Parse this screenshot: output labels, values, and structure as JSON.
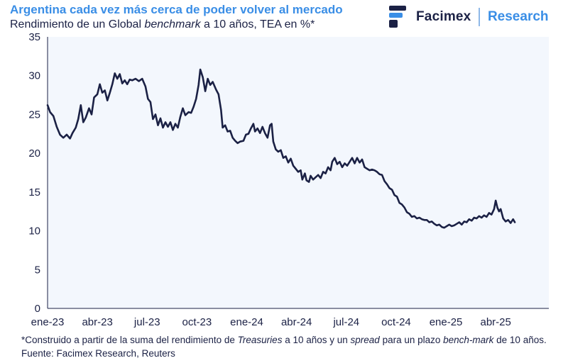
{
  "header": {
    "title": "Argentina cada vez más cerca de poder volver al mercado",
    "subtitle_pre": "Rendimiento de un Global ",
    "subtitle_em": "benchmark",
    "subtitle_post": " a 10 años, TEA en %*"
  },
  "brand": {
    "name": "Facimex",
    "unit": "Research",
    "colors": {
      "navy": "#1b2145",
      "blue": "#3a8ee6"
    }
  },
  "footnote": {
    "p1": "*Construido a partir de la suma del rendimiento de ",
    "em1": "Treasuries",
    "p2": " a 10 años y un ",
    "em2": "spread",
    "p3": " para un plazo ",
    "em3": "bench-mark",
    "p4": " de 10 años. Fuente: Facimex Research, Reuters"
  },
  "chart_data": {
    "type": "line",
    "title": "Rendimiento de un Global benchmark a 10 años, TEA en %*",
    "xlabel": "",
    "ylabel": "",
    "ylim": [
      0,
      35
    ],
    "yticks": [
      0,
      5,
      10,
      15,
      20,
      25,
      30,
      35
    ],
    "xlim": [
      0,
      30.2
    ],
    "xticks": [
      {
        "label": "ene-23",
        "m": 0
      },
      {
        "label": "abr-23",
        "m": 3
      },
      {
        "label": "jul-23",
        "m": 6
      },
      {
        "label": "oct-23",
        "m": 9
      },
      {
        "label": "ene-24",
        "m": 12
      },
      {
        "label": "abr-24",
        "m": 15
      },
      {
        "label": "jul-24",
        "m": 18
      },
      {
        "label": "oct-24",
        "m": 21
      },
      {
        "label": "ene-25",
        "m": 24
      },
      {
        "label": "abr-25",
        "m": 27
      }
    ],
    "x_unit": "months since Jan 2023",
    "series": [
      {
        "name": "Rendimiento Global benchmark 10 años (%)",
        "color": "#1b2145",
        "points": [
          [
            0.0,
            26.2
          ],
          [
            0.15,
            25.3
          ],
          [
            0.35,
            24.8
          ],
          [
            0.55,
            23.4
          ],
          [
            0.75,
            22.4
          ],
          [
            0.95,
            22.0
          ],
          [
            1.15,
            22.4
          ],
          [
            1.35,
            21.9
          ],
          [
            1.5,
            22.6
          ],
          [
            1.7,
            23.3
          ],
          [
            1.85,
            24.4
          ],
          [
            2.0,
            26.2
          ],
          [
            2.15,
            24.0
          ],
          [
            2.3,
            24.6
          ],
          [
            2.5,
            25.8
          ],
          [
            2.65,
            25.0
          ],
          [
            2.8,
            27.2
          ],
          [
            3.0,
            27.6
          ],
          [
            3.15,
            28.9
          ],
          [
            3.3,
            27.8
          ],
          [
            3.45,
            28.1
          ],
          [
            3.6,
            26.8
          ],
          [
            3.75,
            27.8
          ],
          [
            3.9,
            28.9
          ],
          [
            4.05,
            30.3
          ],
          [
            4.2,
            29.6
          ],
          [
            4.35,
            30.2
          ],
          [
            4.5,
            29.0
          ],
          [
            4.65,
            29.4
          ],
          [
            4.8,
            28.9
          ],
          [
            4.95,
            29.5
          ],
          [
            5.1,
            29.4
          ],
          [
            5.3,
            29.6
          ],
          [
            5.5,
            29.3
          ],
          [
            5.7,
            29.6
          ],
          [
            5.9,
            28.6
          ],
          [
            6.05,
            27.0
          ],
          [
            6.2,
            26.6
          ],
          [
            6.35,
            24.4
          ],
          [
            6.5,
            25.0
          ],
          [
            6.65,
            23.6
          ],
          [
            6.8,
            24.5
          ],
          [
            6.95,
            23.3
          ],
          [
            7.1,
            24.0
          ],
          [
            7.25,
            23.4
          ],
          [
            7.4,
            24.0
          ],
          [
            7.55,
            23.0
          ],
          [
            7.7,
            23.8
          ],
          [
            7.85,
            23.3
          ],
          [
            8.0,
            24.7
          ],
          [
            8.15,
            25.8
          ],
          [
            8.3,
            24.9
          ],
          [
            8.5,
            25.3
          ],
          [
            8.65,
            25.2
          ],
          [
            8.8,
            26.0
          ],
          [
            8.95,
            27.0
          ],
          [
            9.1,
            28.8
          ],
          [
            9.2,
            30.8
          ],
          [
            9.35,
            29.8
          ],
          [
            9.5,
            28.0
          ],
          [
            9.65,
            29.6
          ],
          [
            9.8,
            28.8
          ],
          [
            9.95,
            29.2
          ],
          [
            10.15,
            28.2
          ],
          [
            10.3,
            27.6
          ],
          [
            10.45,
            25.6
          ],
          [
            10.55,
            23.3
          ],
          [
            10.7,
            23.6
          ],
          [
            10.85,
            22.8
          ],
          [
            11.0,
            22.9
          ],
          [
            11.15,
            22.0
          ],
          [
            11.3,
            21.6
          ],
          [
            11.45,
            21.3
          ],
          [
            11.6,
            21.5
          ],
          [
            11.8,
            21.6
          ],
          [
            11.95,
            22.4
          ],
          [
            12.1,
            22.5
          ],
          [
            12.25,
            23.2
          ],
          [
            12.4,
            23.8
          ],
          [
            12.5,
            22.8
          ],
          [
            12.65,
            23.2
          ],
          [
            12.8,
            22.6
          ],
          [
            12.95,
            23.4
          ],
          [
            13.1,
            22.6
          ],
          [
            13.25,
            22.0
          ],
          [
            13.4,
            23.6
          ],
          [
            13.5,
            23.8
          ],
          [
            13.6,
            21.5
          ],
          [
            13.75,
            20.5
          ],
          [
            13.9,
            20.2
          ],
          [
            14.05,
            20.4
          ],
          [
            14.2,
            19.4
          ],
          [
            14.35,
            19.6
          ],
          [
            14.5,
            18.8
          ],
          [
            14.65,
            19.3
          ],
          [
            14.8,
            18.4
          ],
          [
            14.95,
            18.0
          ],
          [
            15.1,
            17.6
          ],
          [
            15.25,
            17.8
          ],
          [
            15.35,
            16.6
          ],
          [
            15.5,
            17.4
          ],
          [
            15.6,
            16.5
          ],
          [
            15.75,
            16.3
          ],
          [
            15.85,
            17.1
          ],
          [
            16.0,
            16.6
          ],
          [
            16.15,
            16.9
          ],
          [
            16.3,
            17.2
          ],
          [
            16.45,
            16.8
          ],
          [
            16.6,
            17.6
          ],
          [
            16.75,
            17.4
          ],
          [
            16.9,
            18.2
          ],
          [
            17.05,
            17.8
          ],
          [
            17.15,
            18.9
          ],
          [
            17.3,
            19.4
          ],
          [
            17.45,
            18.6
          ],
          [
            17.6,
            18.9
          ],
          [
            17.75,
            18.2
          ],
          [
            17.9,
            18.7
          ],
          [
            18.05,
            18.4
          ],
          [
            18.2,
            18.9
          ],
          [
            18.35,
            19.4
          ],
          [
            18.5,
            18.7
          ],
          [
            18.65,
            19.4
          ],
          [
            18.8,
            18.8
          ],
          [
            18.95,
            19.2
          ],
          [
            19.1,
            18.2
          ],
          [
            19.25,
            18.0
          ],
          [
            19.4,
            17.8
          ],
          [
            19.55,
            17.9
          ],
          [
            19.7,
            17.8
          ],
          [
            19.85,
            17.6
          ],
          [
            20.0,
            17.3
          ],
          [
            20.15,
            17.2
          ],
          [
            20.3,
            16.4
          ],
          [
            20.45,
            16.0
          ],
          [
            20.6,
            15.5
          ],
          [
            20.75,
            15.3
          ],
          [
            20.9,
            14.6
          ],
          [
            21.05,
            14.4
          ],
          [
            21.2,
            13.6
          ],
          [
            21.35,
            13.4
          ],
          [
            21.5,
            13.0
          ],
          [
            21.65,
            12.4
          ],
          [
            21.8,
            12.2
          ],
          [
            21.95,
            11.8
          ],
          [
            22.1,
            11.9
          ],
          [
            22.25,
            11.6
          ],
          [
            22.4,
            11.7
          ],
          [
            22.55,
            11.5
          ],
          [
            22.7,
            11.4
          ],
          [
            22.85,
            11.4
          ],
          [
            23.0,
            11.1
          ],
          [
            23.15,
            11.2
          ],
          [
            23.3,
            10.9
          ],
          [
            23.45,
            10.7
          ],
          [
            23.6,
            10.8
          ],
          [
            23.75,
            10.5
          ],
          [
            23.9,
            10.4
          ],
          [
            24.05,
            10.6
          ],
          [
            24.2,
            10.8
          ],
          [
            24.35,
            10.6
          ],
          [
            24.5,
            10.7
          ],
          [
            24.65,
            10.9
          ],
          [
            24.8,
            11.1
          ],
          [
            24.95,
            10.8
          ],
          [
            25.1,
            11.2
          ],
          [
            25.25,
            11.1
          ],
          [
            25.4,
            11.5
          ],
          [
            25.55,
            11.3
          ],
          [
            25.7,
            11.7
          ],
          [
            25.85,
            11.6
          ],
          [
            26.0,
            11.9
          ],
          [
            26.15,
            11.7
          ],
          [
            26.3,
            12.0
          ],
          [
            26.45,
            11.8
          ],
          [
            26.6,
            12.3
          ],
          [
            26.75,
            12.1
          ],
          [
            26.9,
            12.8
          ],
          [
            27.0,
            13.9
          ],
          [
            27.1,
            13.0
          ],
          [
            27.2,
            12.5
          ],
          [
            27.3,
            12.8
          ],
          [
            27.45,
            11.6
          ],
          [
            27.6,
            11.2
          ],
          [
            27.75,
            11.4
          ],
          [
            27.9,
            11.0
          ],
          [
            28.05,
            11.5
          ],
          [
            28.15,
            11.1
          ]
        ]
      }
    ]
  }
}
